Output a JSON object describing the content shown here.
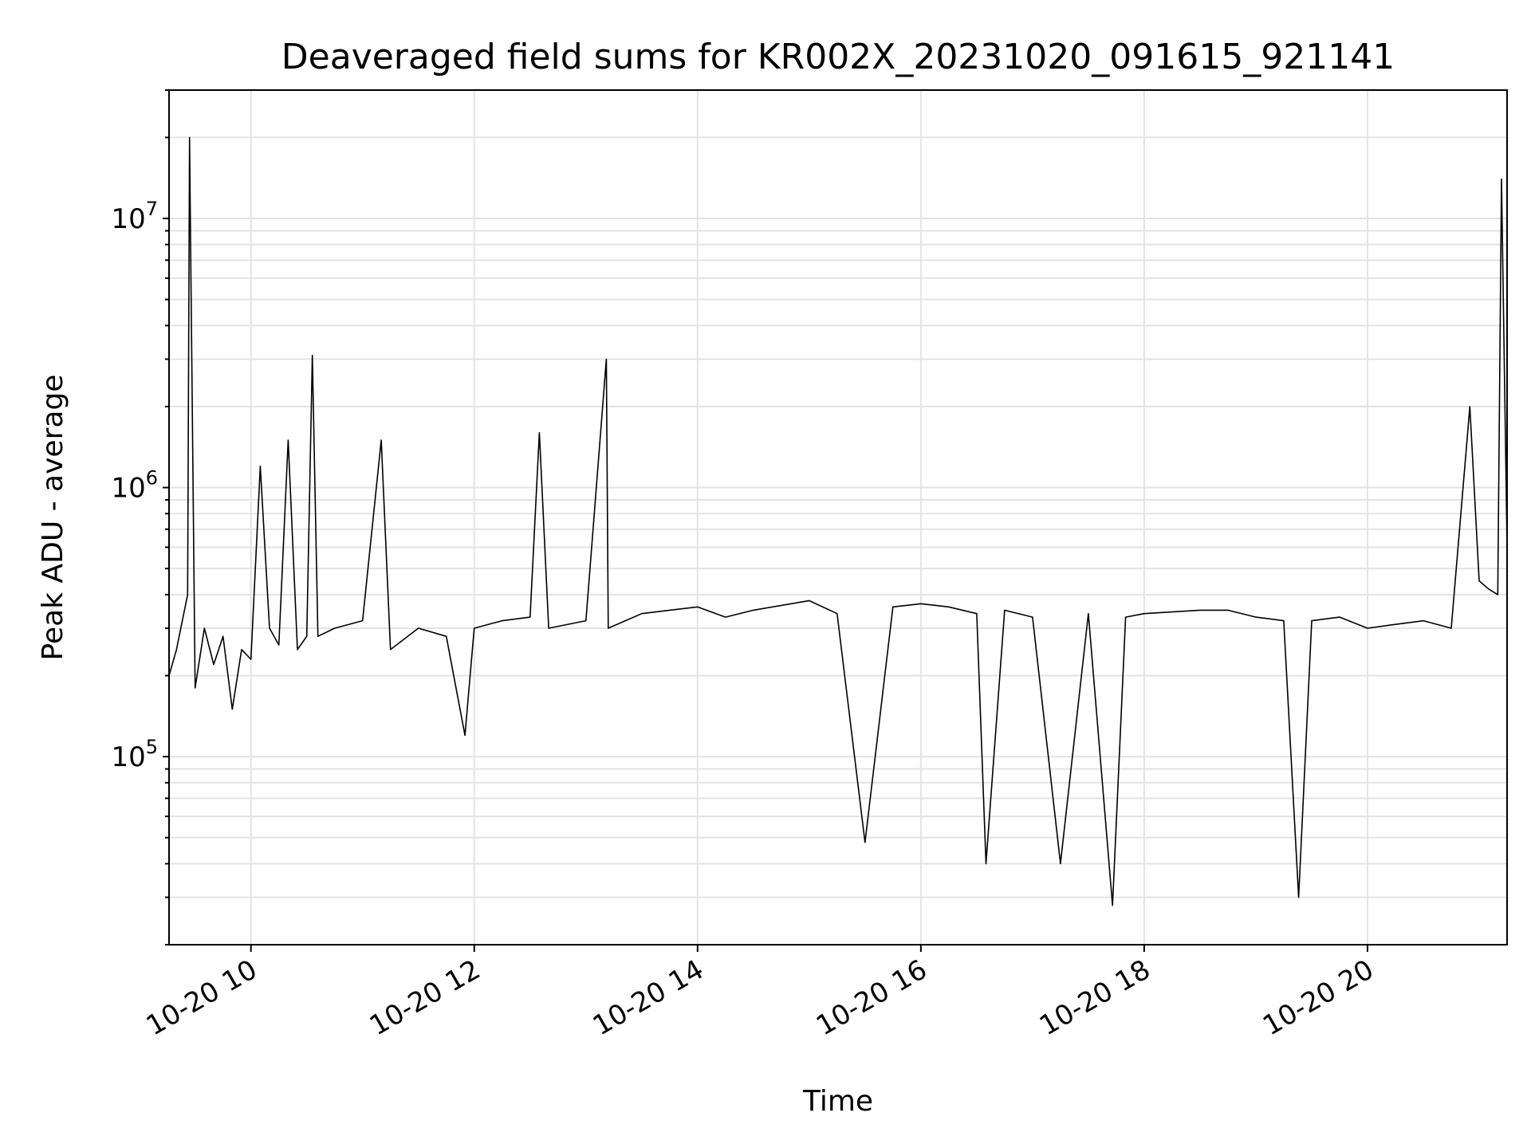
{
  "chart_data": {
    "type": "line",
    "title": "Deaveraged field sums for KR002X_20231020_091615_921141",
    "xlabel": "Time",
    "ylabel": "Peak ADU - average",
    "x_axis": "datetime",
    "x_range": [
      "2023-10-20 09:16",
      "2023-10-20 21:15"
    ],
    "y_scale": "log",
    "ylim": [
      20000,
      30000000
    ],
    "grid": true,
    "x_ticks": [
      {
        "t": "2023-10-20 10:00",
        "label": "10-20 10"
      },
      {
        "t": "2023-10-20 12:00",
        "label": "10-20 12"
      },
      {
        "t": "2023-10-20 14:00",
        "label": "10-20 14"
      },
      {
        "t": "2023-10-20 16:00",
        "label": "10-20 16"
      },
      {
        "t": "2023-10-20 18:00",
        "label": "10-20 18"
      },
      {
        "t": "2023-10-20 20:00",
        "label": "10-20 20"
      }
    ],
    "y_ticks": [
      {
        "value": 100000,
        "base": "10",
        "exp": "5"
      },
      {
        "value": 1000000,
        "base": "10",
        "exp": "6"
      },
      {
        "value": 10000000,
        "base": "10",
        "exp": "7"
      }
    ],
    "series": [
      {
        "color": "#000000",
        "x": [
          "2023-10-20 09:16",
          "2023-10-20 09:20",
          "2023-10-20 09:26",
          "2023-10-20 09:27",
          "2023-10-20 09:30",
          "2023-10-20 09:35",
          "2023-10-20 09:40",
          "2023-10-20 09:45",
          "2023-10-20 09:50",
          "2023-10-20 09:55",
          "2023-10-20 10:00",
          "2023-10-20 10:05",
          "2023-10-20 10:10",
          "2023-10-20 10:15",
          "2023-10-20 10:20",
          "2023-10-20 10:25",
          "2023-10-20 10:30",
          "2023-10-20 10:33",
          "2023-10-20 10:36",
          "2023-10-20 10:45",
          "2023-10-20 11:00",
          "2023-10-20 11:10",
          "2023-10-20 11:15",
          "2023-10-20 11:30",
          "2023-10-20 11:45",
          "2023-10-20 11:55",
          "2023-10-20 12:00",
          "2023-10-20 12:15",
          "2023-10-20 12:30",
          "2023-10-20 12:35",
          "2023-10-20 12:40",
          "2023-10-20 13:00",
          "2023-10-20 13:11",
          "2023-10-20 13:12",
          "2023-10-20 13:30",
          "2023-10-20 13:45",
          "2023-10-20 14:00",
          "2023-10-20 14:15",
          "2023-10-20 14:30",
          "2023-10-20 15:00",
          "2023-10-20 15:15",
          "2023-10-20 15:30",
          "2023-10-20 15:45",
          "2023-10-20 16:00",
          "2023-10-20 16:15",
          "2023-10-20 16:30",
          "2023-10-20 16:35",
          "2023-10-20 16:45",
          "2023-10-20 17:00",
          "2023-10-20 17:15",
          "2023-10-20 17:30",
          "2023-10-20 17:43",
          "2023-10-20 17:50",
          "2023-10-20 18:00",
          "2023-10-20 18:30",
          "2023-10-20 18:45",
          "2023-10-20 19:00",
          "2023-10-20 19:15",
          "2023-10-20 19:23",
          "2023-10-20 19:30",
          "2023-10-20 19:45",
          "2023-10-20 20:00",
          "2023-10-20 20:15",
          "2023-10-20 20:30",
          "2023-10-20 20:45",
          "2023-10-20 20:55",
          "2023-10-20 21:00",
          "2023-10-20 21:05",
          "2023-10-20 21:10",
          "2023-10-20 21:12",
          "2023-10-20 21:15"
        ],
        "y": [
          200000,
          250000,
          400000,
          20000000,
          180000,
          300000,
          220000,
          280000,
          150000,
          250000,
          230000,
          1200000,
          300000,
          260000,
          1500000,
          250000,
          280000,
          3100000,
          280000,
          300000,
          320000,
          1500000,
          250000,
          300000,
          280000,
          120000,
          300000,
          320000,
          330000,
          1600000,
          300000,
          320000,
          3000000,
          300000,
          340000,
          350000,
          360000,
          330000,
          350000,
          380000,
          340000,
          48000,
          360000,
          370000,
          360000,
          340000,
          40000,
          350000,
          330000,
          40000,
          340000,
          28000,
          330000,
          340000,
          350000,
          350000,
          330000,
          320000,
          30000,
          320000,
          330000,
          300000,
          310000,
          320000,
          300000,
          2000000,
          450000,
          420000,
          400000,
          14000000,
          600000
        ]
      }
    ]
  }
}
